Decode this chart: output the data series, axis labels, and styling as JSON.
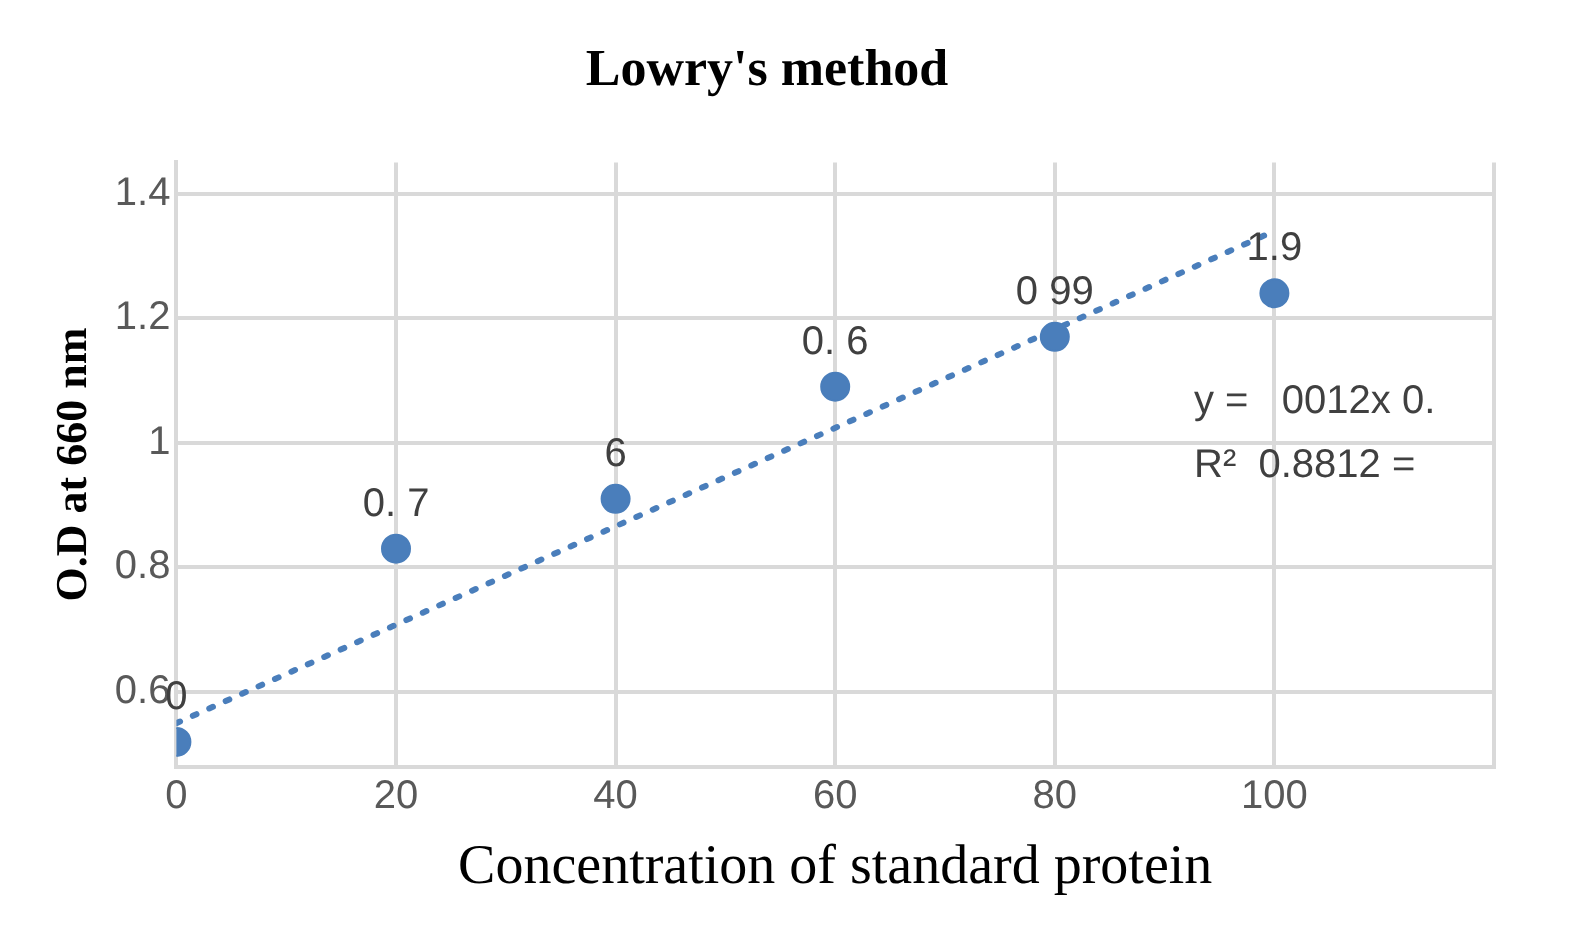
{
  "chart_data": {
    "type": "scatter",
    "title": "Lowry's method",
    "xlabel": "Concentration of standard protein",
    "ylabel": "O.D at 660 nm",
    "x": [
      0,
      20,
      40,
      60,
      80,
      100
    ],
    "series": [
      {
        "type": "scatter",
        "color": "#4a7ebb",
        "marker": "circle",
        "values": [
          0.52,
          0.83,
          0.91,
          1.09,
          1.17,
          1.24
        ]
      },
      {
        "type": "line",
        "x": [
          0,
          100
        ],
        "color": "#4a7ebb",
        "marker": "none",
        "line_style": "dotted",
        "values": [
          0.55,
          1.34
        ]
      }
    ],
    "xlim": [
      0,
      120
    ],
    "xticks": [
      0,
      20,
      40,
      60,
      80,
      100,
      {
        "value": 120,
        "label": null
      }
    ],
    "ylim": [
      0.48,
      1.45
    ],
    "yticks": [
      0.6,
      0.8,
      1,
      1.2,
      1.4
    ],
    "grid": true,
    "legend": false,
    "annotations": [
      {
        "text": "0",
        "x": 0,
        "y": 0.52
      },
      {
        "text": "0. 7",
        "x": 20,
        "y": 0.83
      },
      {
        "text": "6",
        "x": 40,
        "y": 0.91
      },
      {
        "text": "0. 6",
        "x": 60,
        "y": 1.09
      },
      {
        "text": "0 99",
        "x": 80,
        "y": 1.17
      },
      {
        "text": "1.9",
        "x": 100,
        "y": 1.24
      },
      "y =   0012x 0.",
      "R²  0.8812 ="
    ]
  }
}
